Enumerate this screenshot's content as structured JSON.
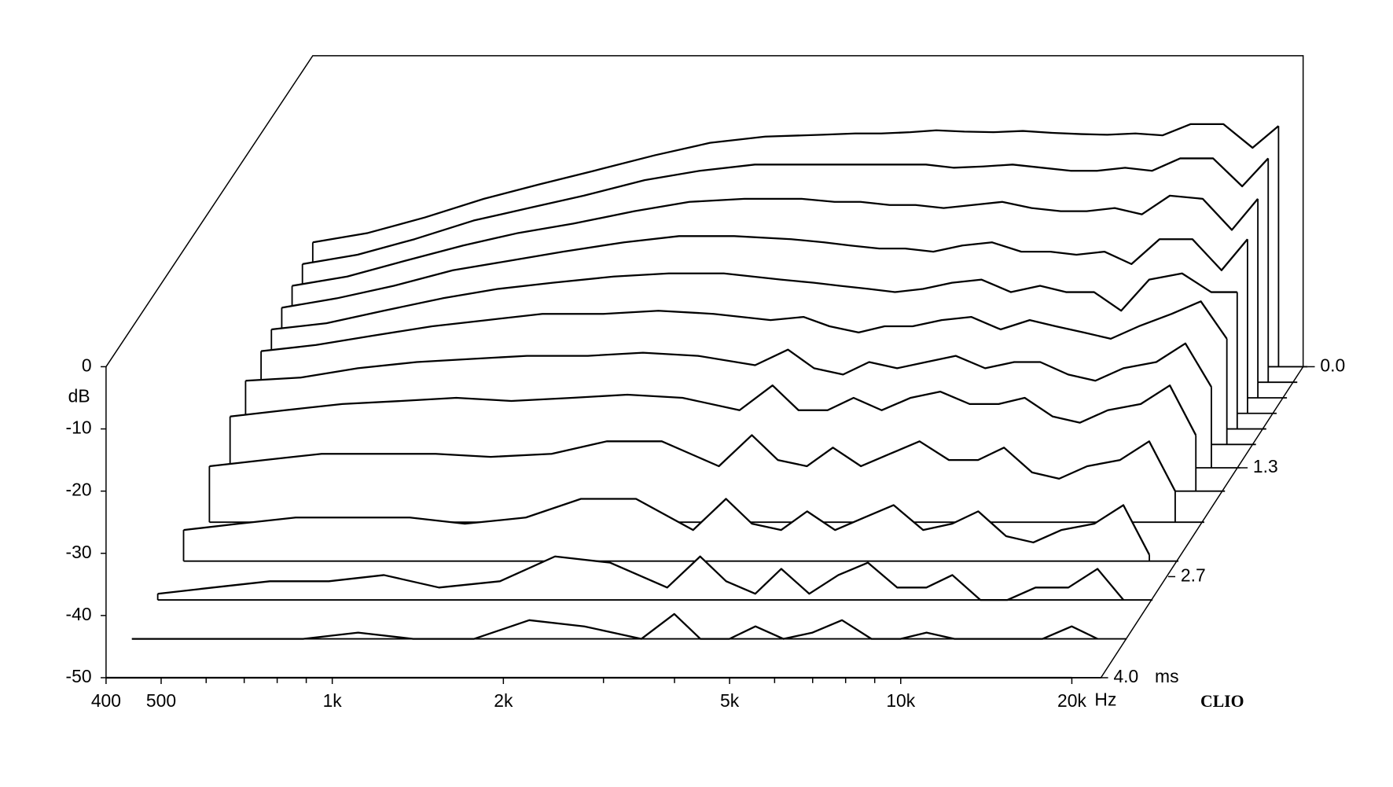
{
  "chart_data": {
    "type": "waterfall",
    "color": "#000000",
    "x_unit": "Hz",
    "y_unit": "dB",
    "z_unit": "ms",
    "brand": "CLIO",
    "xlim": [
      400,
      22500
    ],
    "log_x": true,
    "xticks": [
      400,
      500,
      {
        "value": 1000,
        "label": "1k"
      },
      {
        "value": 2000,
        "label": "2k"
      },
      {
        "value": 5000,
        "label": "5k"
      },
      {
        "value": 10000,
        "label": "10k"
      },
      {
        "value": 20000,
        "label": "20k"
      }
    ],
    "xminorticks": [
      600,
      700,
      800,
      900,
      3000,
      4000,
      6000,
      7000,
      8000,
      9000
    ],
    "ylim": [
      -50,
      0
    ],
    "yticks": [
      0,
      -10,
      -20,
      -30,
      -40,
      -50
    ],
    "zlim": [
      0,
      4
    ],
    "zticks": [
      {
        "value": 0,
        "label": "0.0"
      },
      1.3,
      2.7,
      {
        "value": 4,
        "label": "4.0"
      }
    ],
    "x": [
      400,
      500,
      630,
      800,
      1000,
      1250,
      1600,
      2000,
      2500,
      3150,
      3600,
      4000,
      4500,
      5000,
      5600,
      6300,
      7100,
      8000,
      9000,
      10000,
      11200,
      12500,
      14000,
      16000,
      18000,
      20000
    ],
    "series": [
      {
        "time": 0,
        "values": [
          -30,
          -28.5,
          -26,
          -23,
          -20.7,
          -18.5,
          -16,
          -14,
          -13,
          -12.7,
          -12.5,
          -12.5,
          -12.3,
          -12,
          -12.2,
          -12.3,
          -12.1,
          -12.4,
          -12.6,
          -12.7,
          -12.5,
          -12.8,
          -11,
          -11,
          -14.8,
          -11.3
        ]
      },
      {
        "time": 0.2,
        "values": [
          -31,
          -29.5,
          -27,
          -24,
          -22,
          -20,
          -17.5,
          -16,
          -15,
          -15,
          -15,
          -15,
          -15,
          -15,
          -15.5,
          -15.3,
          -15,
          -15.5,
          -16,
          -16,
          -15.5,
          -16,
          -14,
          -14,
          -18.5,
          -14
        ]
      },
      {
        "time": 0.4,
        "values": [
          -32,
          -30.5,
          -28,
          -25.5,
          -23.5,
          -22,
          -20,
          -18.5,
          -18,
          -18,
          -18.5,
          -18.5,
          -19,
          -19,
          -19.5,
          -19,
          -18.5,
          -19.5,
          -20,
          -20,
          -19.5,
          -20.5,
          -17.5,
          -18,
          -23,
          -18
        ]
      },
      {
        "time": 0.6,
        "values": [
          -33,
          -31.5,
          -29.5,
          -27,
          -25.5,
          -24,
          -22.5,
          -21.5,
          -21.5,
          -22,
          -22.5,
          -23,
          -23.5,
          -23.5,
          -24,
          -23,
          -22.5,
          -24,
          -24,
          -24.5,
          -24,
          -26,
          -22,
          -22,
          -27,
          -22
        ]
      },
      {
        "time": 0.8,
        "values": [
          -34,
          -33,
          -31,
          -29,
          -27.5,
          -26.5,
          -25.5,
          -25,
          -25,
          -26,
          -26.5,
          -27,
          -27.5,
          -28,
          -27.5,
          -26.5,
          -26,
          -28,
          -27,
          -28,
          -28,
          -31,
          -26,
          -25,
          -28,
          -28
        ]
      },
      {
        "time": 1.0,
        "values": [
          -35,
          -34,
          -32.5,
          -31,
          -30,
          -29,
          -29,
          -28.5,
          -29,
          -30,
          -29.5,
          -31,
          -32,
          -31,
          -31,
          -30,
          -29.5,
          -31.5,
          -30,
          -31,
          -32,
          -33,
          -31,
          -29,
          -27,
          -33
        ]
      },
      {
        "time": 1.3,
        "values": [
          -36,
          -35.5,
          -34,
          -33,
          -32.5,
          -32,
          -32,
          -31.5,
          -32,
          -33.5,
          -31,
          -34,
          -35,
          -33,
          -34,
          -33,
          -32,
          -34,
          -33,
          -33,
          -35,
          -36,
          -34,
          -33,
          -30,
          -37
        ]
      },
      {
        "time": 1.6,
        "values": [
          -38,
          -37,
          -36,
          -35.5,
          -35,
          -35.5,
          -35,
          -34.5,
          -35,
          -37,
          -33,
          -37,
          -37,
          -35,
          -37,
          -35,
          -34,
          -36,
          -36,
          -35,
          -38,
          -39,
          -37,
          -36,
          -33,
          -41
        ]
      },
      {
        "time": 2.0,
        "values": [
          -41,
          -40,
          -39,
          -39,
          -39,
          -39.5,
          -39,
          -37,
          -37,
          -41,
          -36,
          -40,
          -41,
          -38,
          -41,
          -39,
          -37,
          -40,
          -40,
          -38,
          -42,
          -43,
          -41,
          -40,
          -37,
          -45
        ]
      },
      {
        "time": 2.5,
        "values": [
          -45,
          -44,
          -43,
          -43,
          -43,
          -44,
          -43,
          -40,
          -40,
          -45,
          -40,
          -44,
          -45,
          -42,
          -45,
          -43,
          -41,
          -45,
          -44,
          -42,
          -46,
          -47,
          -45,
          -44,
          -41,
          -49
        ]
      },
      {
        "time": 3.0,
        "values": [
          -49,
          -48,
          -47,
          -47,
          -46,
          -48,
          -47,
          -43,
          -44,
          -48,
          -43,
          -47,
          -49,
          -45,
          -49,
          -46,
          -44,
          -48,
          -48,
          -46,
          -50,
          -50,
          -48,
          -48,
          -45,
          -50
        ]
      },
      {
        "time": 3.5,
        "values": [
          -50,
          -50,
          -50,
          -50,
          -49,
          -50,
          -50,
          -47,
          -48,
          -50,
          -46,
          -50,
          -50,
          -48,
          -50,
          -49,
          -47,
          -50,
          -50,
          -49,
          -50,
          -50,
          -50,
          -50,
          -48,
          -50
        ]
      },
      {
        "time": 4.0,
        "values": [
          -50,
          -50,
          -50,
          -50,
          -50,
          -50,
          -50,
          -50,
          -50,
          -50,
          -50,
          -50,
          -50,
          -50,
          -50,
          -50,
          -50,
          -50,
          -50,
          -50,
          -50,
          -50,
          -50,
          -50,
          -50,
          -50
        ]
      }
    ]
  }
}
